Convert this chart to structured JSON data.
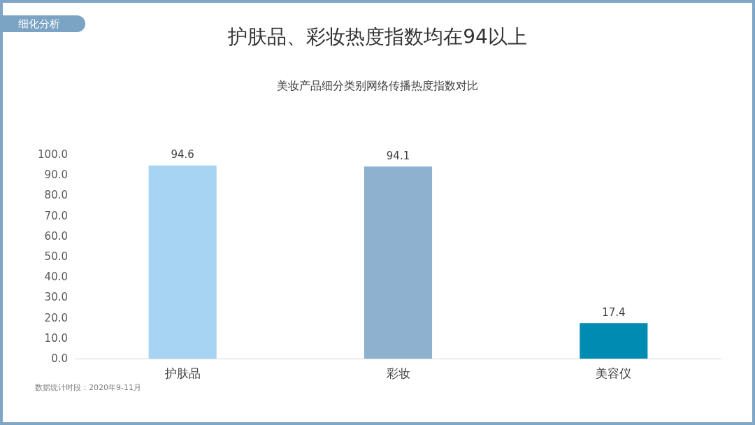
{
  "chart_data": {
    "type": "bar",
    "title": "护肤品、彩妆热度指数均在94以上",
    "subtitle": "美妆产品细分类别网络传播热度指数对比",
    "categories": [
      "护肤品",
      "彩妆",
      "美容仪"
    ],
    "values": [
      94.6,
      94.1,
      17.4
    ],
    "colors": [
      "#a8d4f3",
      "#8db1ce",
      "#008bb2"
    ],
    "ylim": [
      0,
      100
    ],
    "yticks": [
      {
        "value": 0,
        "label": "0.0"
      },
      {
        "value": 10,
        "label": "10.0"
      },
      {
        "value": 20,
        "label": "20.0"
      },
      {
        "value": 30,
        "label": "30.0"
      },
      {
        "value": 40,
        "label": "40.0"
      },
      {
        "value": 50,
        "label": "50.0"
      },
      {
        "value": 60,
        "label": "60.0"
      },
      {
        "value": 70,
        "label": "70.0"
      },
      {
        "value": 80,
        "label": "80.0"
      },
      {
        "value": 90,
        "label": "90.0"
      },
      {
        "value": 100,
        "label": "100.0"
      }
    ],
    "grid": false,
    "data_labels": true,
    "annotations": [
      "细化分析",
      "数据统计时段：2020年9-11月"
    ]
  }
}
